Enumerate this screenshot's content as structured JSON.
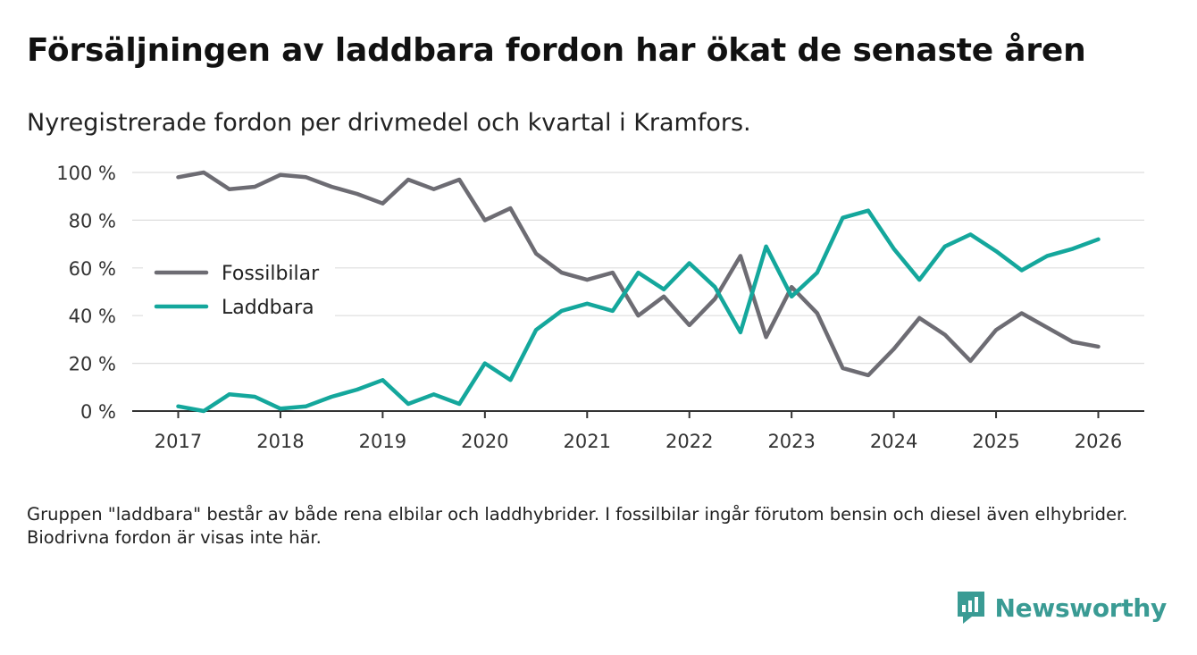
{
  "title": "Försäljningen av laddbara fordon har ökat de senaste åren",
  "subtitle": "Nyregistrerade fordon per drivmedel och kvartal i Kramfors.",
  "note": "Gruppen \"laddbara\" består av både rena elbilar och laddhybrider. I fossilbilar ingår förutom bensin och diesel även elhybrider. Biodrivna fordon är visas inte här.",
  "brand": {
    "name": "Newsworthy",
    "icon": "newsworthy-logo-icon",
    "color": "#3a9b94"
  },
  "chart_data": {
    "type": "line",
    "title": "Försäljningen av laddbara fordon har ökat de senaste åren",
    "xlabel": "",
    "ylabel": "",
    "x": [
      2017,
      2017.25,
      2017.5,
      2017.75,
      2018,
      2018.25,
      2018.5,
      2018.75,
      2019,
      2019.25,
      2019.5,
      2019.75,
      2020,
      2020.25,
      2020.5,
      2020.75,
      2021,
      2021.25,
      2021.5,
      2021.75,
      2022,
      2022.25,
      2022.5,
      2022.75,
      2023,
      2023.25,
      2023.5,
      2023.75,
      2024,
      2024.25,
      2024.5,
      2024.75,
      2025,
      2025.25,
      2025.5,
      2025.75,
      2026
    ],
    "xlim": [
      2016.55,
      2026.45
    ],
    "ylim": [
      0,
      100
    ],
    "x_ticks": [
      2017,
      2018,
      2019,
      2020,
      2021,
      2022,
      2023,
      2024,
      2025,
      2026
    ],
    "x_tick_labels": [
      "2017",
      "2018",
      "2019",
      "2020",
      "2021",
      "2022",
      "2023",
      "2024",
      "2025",
      "2026"
    ],
    "y_ticks": [
      0,
      20,
      40,
      60,
      80,
      100
    ],
    "y_tick_labels": [
      "0 %",
      "20 %",
      "40 %",
      "60 %",
      "80 %",
      "100 %"
    ],
    "grid": true,
    "legend_position": "left-center",
    "series": [
      {
        "name": "Fossilbilar",
        "color": "#6d6c73",
        "values": [
          98,
          100,
          93,
          94,
          99,
          98,
          94,
          91,
          87,
          97,
          93,
          97,
          80,
          85,
          66,
          58,
          55,
          58,
          40,
          48,
          36,
          47,
          65,
          31,
          52,
          41,
          18,
          15,
          26,
          39,
          32,
          21,
          34,
          41,
          35,
          29,
          27
        ]
      },
      {
        "name": "Laddbara",
        "color": "#14a79c",
        "values": [
          2,
          0,
          7,
          6,
          1,
          2,
          6,
          9,
          13,
          3,
          7,
          3,
          20,
          13,
          34,
          42,
          45,
          42,
          58,
          51,
          62,
          52,
          33,
          69,
          48,
          58,
          81,
          84,
          68,
          55,
          69,
          74,
          67,
          59,
          65,
          68,
          72
        ]
      }
    ]
  }
}
